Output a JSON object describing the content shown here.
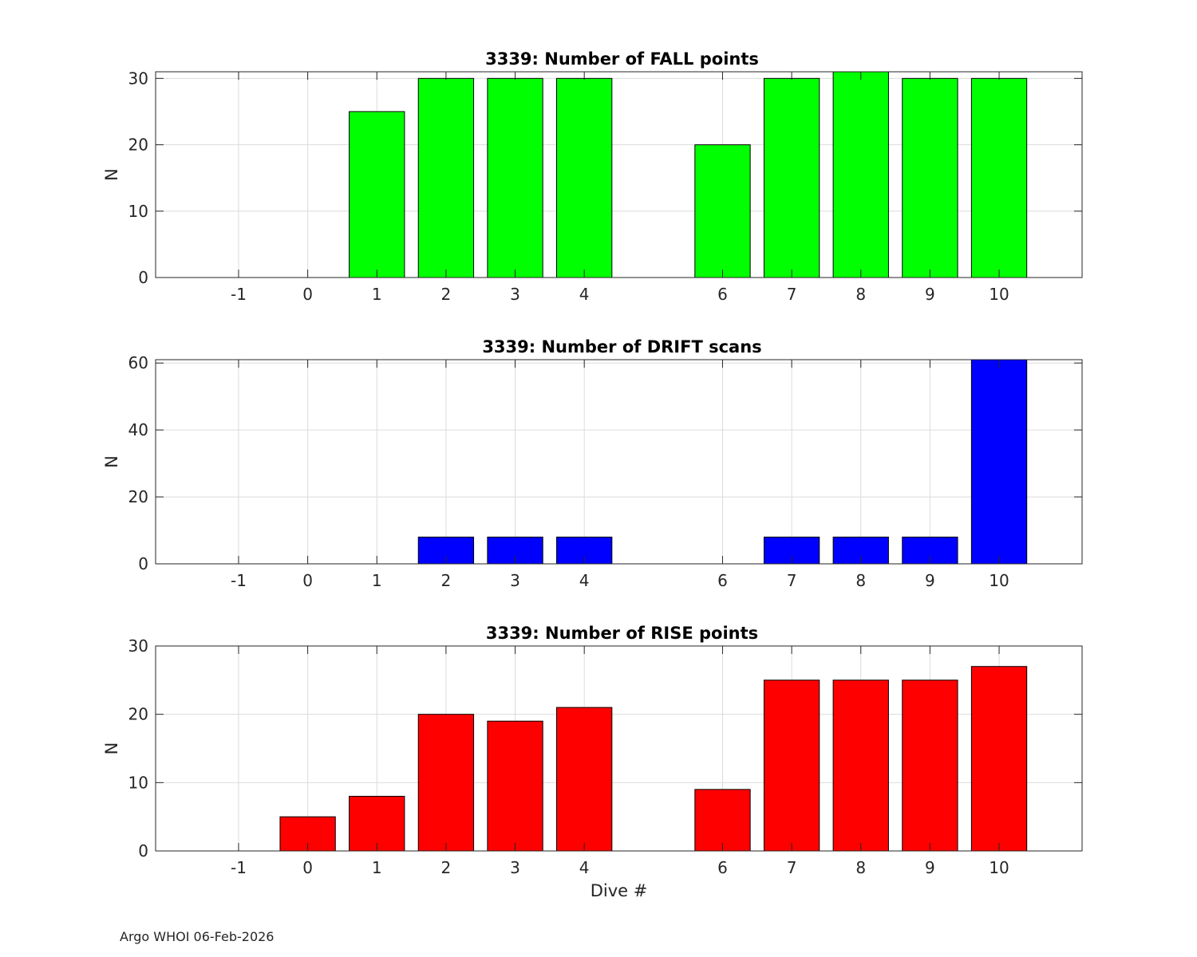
{
  "footer": "Argo WHOI 06-Feb-2026",
  "chart_data": [
    {
      "type": "bar",
      "title": "3339: Number of FALL points",
      "xlabel": "",
      "ylabel": "N",
      "categories": [
        -1,
        0,
        1,
        2,
        3,
        4,
        6,
        7,
        8,
        9,
        10
      ],
      "values": [
        0,
        0,
        25,
        30,
        30,
        30,
        20,
        30,
        31,
        30,
        30
      ],
      "xlim": [
        -2.2,
        11.2
      ],
      "ylim": [
        0,
        31
      ],
      "yticks": [
        0,
        10,
        20,
        30
      ],
      "color": "#00ff00",
      "grid": true
    },
    {
      "type": "bar",
      "title": "3339: Number of DRIFT scans",
      "xlabel": "",
      "ylabel": "N",
      "categories": [
        -1,
        0,
        1,
        2,
        3,
        4,
        6,
        7,
        8,
        9,
        10
      ],
      "values": [
        0,
        0,
        0,
        8,
        8,
        8,
        0,
        8,
        8,
        8,
        61
      ],
      "xlim": [
        -2.2,
        11.2
      ],
      "ylim": [
        0,
        61
      ],
      "yticks": [
        0,
        20,
        40,
        60
      ],
      "color": "#0000ff",
      "grid": true
    },
    {
      "type": "bar",
      "title": "3339: Number of RISE points",
      "xlabel": "Dive #",
      "ylabel": "N",
      "categories": [
        -1,
        0,
        1,
        2,
        3,
        4,
        6,
        7,
        8,
        9,
        10
      ],
      "values": [
        0,
        5,
        8,
        20,
        19,
        21,
        9,
        25,
        25,
        25,
        27
      ],
      "xlim": [
        -2.2,
        11.2
      ],
      "ylim": [
        0,
        30
      ],
      "yticks": [
        0,
        10,
        20,
        30
      ],
      "color": "#ff0000",
      "grid": true
    }
  ]
}
